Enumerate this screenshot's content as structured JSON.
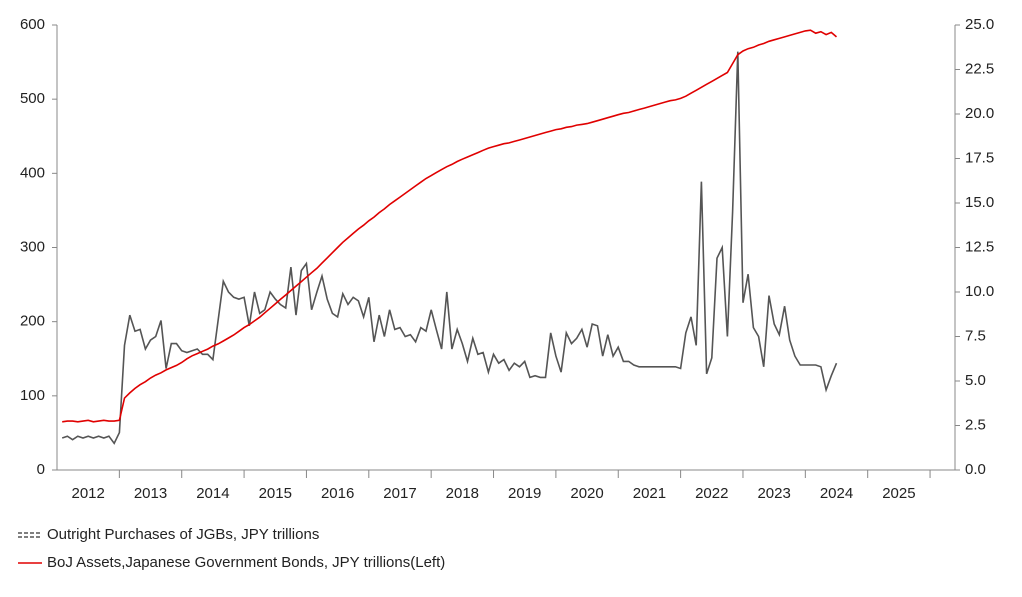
{
  "chart_data": {
    "type": "line",
    "x": [
      2012.083,
      2012.167,
      2012.25,
      2012.333,
      2012.417,
      2012.5,
      2012.583,
      2012.667,
      2012.75,
      2012.833,
      2012.917,
      2013.0,
      2013.083,
      2013.167,
      2013.25,
      2013.333,
      2013.417,
      2013.5,
      2013.583,
      2013.667,
      2013.75,
      2013.833,
      2013.917,
      2014.0,
      2014.083,
      2014.167,
      2014.25,
      2014.333,
      2014.417,
      2014.5,
      2014.583,
      2014.667,
      2014.75,
      2014.833,
      2014.917,
      2015.0,
      2015.083,
      2015.167,
      2015.25,
      2015.333,
      2015.417,
      2015.5,
      2015.583,
      2015.667,
      2015.75,
      2015.833,
      2015.917,
      2016.0,
      2016.083,
      2016.167,
      2016.25,
      2016.333,
      2016.417,
      2016.5,
      2016.583,
      2016.667,
      2016.75,
      2016.833,
      2016.917,
      2017.0,
      2017.083,
      2017.167,
      2017.25,
      2017.333,
      2017.417,
      2017.5,
      2017.583,
      2017.667,
      2017.75,
      2017.833,
      2017.917,
      2018.0,
      2018.083,
      2018.167,
      2018.25,
      2018.333,
      2018.417,
      2018.5,
      2018.583,
      2018.667,
      2018.75,
      2018.833,
      2018.917,
      2019.0,
      2019.083,
      2019.167,
      2019.25,
      2019.333,
      2019.417,
      2019.5,
      2019.583,
      2019.667,
      2019.75,
      2019.833,
      2019.917,
      2020.0,
      2020.083,
      2020.167,
      2020.25,
      2020.333,
      2020.417,
      2020.5,
      2020.583,
      2020.667,
      2020.75,
      2020.833,
      2020.917,
      2021.0,
      2021.083,
      2021.167,
      2021.25,
      2021.333,
      2021.417,
      2021.5,
      2021.583,
      2021.667,
      2021.75,
      2021.833,
      2021.917,
      2022.0,
      2022.083,
      2022.167,
      2022.25,
      2022.333,
      2022.417,
      2022.5,
      2022.583,
      2022.667,
      2022.75,
      2022.833,
      2022.917,
      2023.0,
      2023.083,
      2023.167,
      2023.25,
      2023.333,
      2023.417,
      2023.5,
      2023.583,
      2023.667,
      2023.75,
      2023.833,
      2023.917,
      2024.0,
      2024.083,
      2024.167,
      2024.25,
      2024.333,
      2024.417,
      2024.5
    ],
    "series": [
      {
        "name": "Outright Purchases of JGBs, JPY trillions",
        "color": "#555555",
        "axis": "y2",
        "values": [
          1.8,
          1.9,
          1.7,
          1.9,
          1.8,
          1.9,
          1.8,
          1.9,
          1.8,
          1.9,
          1.5,
          2.1,
          7.0,
          8.7,
          7.8,
          7.9,
          6.8,
          7.3,
          7.5,
          8.4,
          5.7,
          7.1,
          7.1,
          6.7,
          6.6,
          6.7,
          6.8,
          6.5,
          6.5,
          6.2,
          8.4,
          10.6,
          10.0,
          9.7,
          9.6,
          9.7,
          8.1,
          10.0,
          8.8,
          9.0,
          10.0,
          9.6,
          9.3,
          9.1,
          11.4,
          8.7,
          11.2,
          11.6,
          9.0,
          10.0,
          10.9,
          9.6,
          8.8,
          8.6,
          9.9,
          9.3,
          9.7,
          9.5,
          8.6,
          9.7,
          7.2,
          8.7,
          7.5,
          9.0,
          7.9,
          8.0,
          7.5,
          7.6,
          7.2,
          8.0,
          7.8,
          9.0,
          7.9,
          6.8,
          10.0,
          6.8,
          7.9,
          7.1,
          6.1,
          7.4,
          6.5,
          6.6,
          5.5,
          6.5,
          6.0,
          6.2,
          5.6,
          6.0,
          5.8,
          6.1,
          5.2,
          5.3,
          5.2,
          5.2,
          7.7,
          6.4,
          5.5,
          7.7,
          7.1,
          7.4,
          7.9,
          6.9,
          8.2,
          8.1,
          6.4,
          7.6,
          6.4,
          6.9,
          6.1,
          6.1,
          5.9,
          5.8,
          5.8,
          5.8,
          5.8,
          5.8,
          5.8,
          5.8,
          5.8,
          5.7,
          7.7,
          8.6,
          7.0,
          16.2,
          5.4,
          6.3,
          11.9,
          12.5,
          7.5,
          14.5,
          23.5,
          9.4,
          11.0,
          8.0,
          7.5,
          5.8,
          9.8,
          8.2,
          7.6,
          9.2,
          7.3,
          6.4,
          5.9,
          5.9,
          5.9,
          5.9,
          5.8,
          4.5,
          5.3,
          6.0
        ]
      },
      {
        "name": "BoJ Assets,Japanese Government Bonds, JPY trillions(Left)",
        "color": "#e00000",
        "values": [
          65,
          66,
          66,
          65,
          66,
          67,
          65,
          66,
          67,
          66,
          66,
          67,
          97,
          104,
          110,
          115,
          119,
          124,
          128,
          131,
          135,
          138,
          141,
          145,
          150,
          154,
          157,
          160,
          163,
          167,
          170,
          174,
          178,
          182,
          187,
          192,
          196,
          201,
          206,
          212,
          218,
          224,
          230,
          236,
          242,
          248,
          254,
          260,
          266,
          272,
          279,
          286,
          293,
          300,
          307,
          313,
          319,
          325,
          330,
          336,
          341,
          347,
          352,
          358,
          363,
          368,
          373,
          378,
          383,
          388,
          393,
          397,
          401,
          405,
          409,
          412,
          416,
          419,
          422,
          425,
          428,
          431,
          434,
          436,
          438,
          440,
          441,
          443,
          445,
          447,
          449,
          451,
          453,
          455,
          457,
          459,
          460,
          462,
          463,
          465,
          466,
          467,
          469,
          471,
          473,
          475,
          477,
          479,
          481,
          482,
          484,
          486,
          488,
          490,
          492,
          494,
          496,
          498,
          499,
          501,
          504,
          508,
          512,
          516,
          520,
          524,
          528,
          532,
          536,
          548,
          560,
          565,
          568,
          570,
          573,
          575,
          578,
          580,
          582,
          584,
          586,
          588,
          590,
          592,
          593,
          589,
          591,
          587,
          590,
          584
        ]
      }
    ],
    "xlim": [
      2012,
      2026.4
    ],
    "xticks": [
      {
        "value": 2012.5,
        "label": "2012"
      },
      {
        "value": 2013.5,
        "label": "2013"
      },
      {
        "value": 2014.5,
        "label": "2014"
      },
      {
        "value": 2015.5,
        "label": "2015"
      },
      {
        "value": 2016.5,
        "label": "2016"
      },
      {
        "value": 2017.5,
        "label": "2017"
      },
      {
        "value": 2018.5,
        "label": "2018"
      },
      {
        "value": 2019.5,
        "label": "2019"
      },
      {
        "value": 2020.5,
        "label": "2020"
      },
      {
        "value": 2021.5,
        "label": "2021"
      },
      {
        "value": 2022.5,
        "label": "2022"
      },
      {
        "value": 2023.5,
        "label": "2023"
      },
      {
        "value": 2024.5,
        "label": "2024"
      },
      {
        "value": 2025.5,
        "label": "2025"
      }
    ],
    "ylim": [
      0,
      600
    ],
    "yticks": [
      0,
      100,
      200,
      300,
      400,
      500,
      600
    ],
    "y2lim": [
      0,
      25
    ],
    "y2ticks": [
      {
        "value": 0,
        "label": "0.0"
      },
      {
        "value": 2.5,
        "label": "2.5"
      },
      {
        "value": 5,
        "label": "5.0"
      },
      {
        "value": 7.5,
        "label": "7.5"
      },
      {
        "value": 10,
        "label": "10.0"
      },
      {
        "value": 12.5,
        "label": "12.5"
      },
      {
        "value": 15,
        "label": "15.0"
      },
      {
        "value": 17.5,
        "label": "17.5"
      },
      {
        "value": 20,
        "label": "20.0"
      },
      {
        "value": 22.5,
        "label": "22.5"
      },
      {
        "value": 25,
        "label": "25.0"
      }
    ],
    "legend": "bottom-left"
  }
}
